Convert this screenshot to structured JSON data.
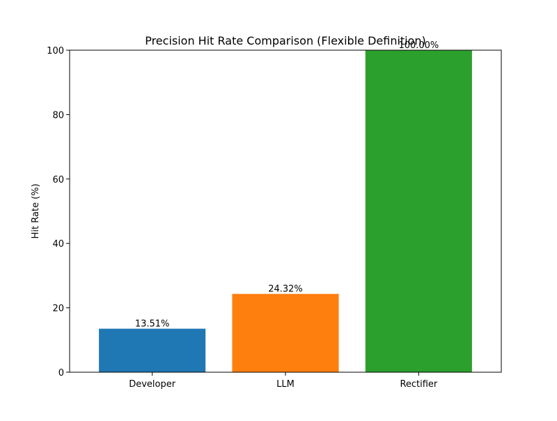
{
  "chart_data": {
    "type": "bar",
    "title": "Precision Hit Rate Comparison (Flexible Definition)",
    "xlabel": "",
    "ylabel": "Hit Rate (%)",
    "ylim": [
      0,
      100
    ],
    "yticks": [
      0,
      20,
      40,
      60,
      80,
      100
    ],
    "grid": false,
    "categories": [
      "Developer",
      "LLM",
      "Rectifier"
    ],
    "values": [
      13.51,
      24.32,
      100.0
    ],
    "value_labels": [
      "13.51%",
      "24.32%",
      "100.00%"
    ],
    "colors": [
      "#1f77b4",
      "#ff7f0e",
      "#2ca02c"
    ]
  }
}
